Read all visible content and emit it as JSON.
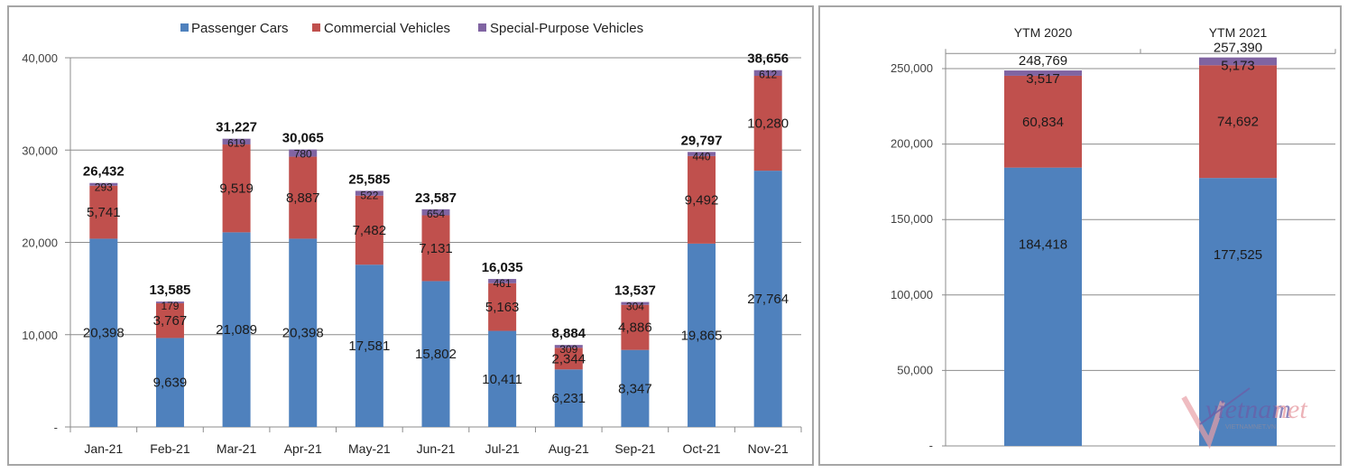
{
  "colors": {
    "passenger": "#4f81bd",
    "commercial": "#c0504d",
    "special": "#8064a2",
    "grid": "#8c8c8c",
    "watermark_red": "#e8a0a6",
    "watermark_purple": "#6a5fa8"
  },
  "watermark": {
    "brand": "vietnamnet",
    "url": "VIETNAMNET.VN"
  },
  "chart_data": [
    {
      "type": "bar",
      "stacked": true,
      "title": "",
      "xlabel": "",
      "ylabel": "",
      "legend": {
        "placement": "top",
        "entries": [
          "Passenger Cars",
          "Commercial Vehicles",
          "Special-Purpose Vehicles"
        ]
      },
      "grid": true,
      "ylim": [
        0,
        40000
      ],
      "yticks": [
        0,
        10000,
        20000,
        30000,
        40000
      ],
      "ytick_labels": [
        "-",
        "10,000",
        "20,000",
        "30,000",
        "40,000"
      ],
      "categories": [
        "Jan-21",
        "Feb-21",
        "Mar-21",
        "Apr-21",
        "May-21",
        "Jun-21",
        "Jul-21",
        "Aug-21",
        "Sep-21",
        "Oct-21",
        "Nov-21"
      ],
      "series": [
        {
          "name": "Passenger Cars",
          "values": [
            20398,
            9639,
            21089,
            20398,
            17581,
            15802,
            10411,
            6231,
            8347,
            19865,
            27764
          ],
          "labels": [
            "20,398",
            "9,639",
            "21,089",
            "20,398",
            "17,581",
            "15,802",
            "10,411",
            "6,231",
            "8,347",
            "19,865",
            "27,764"
          ]
        },
        {
          "name": "Commercial Vehicles",
          "values": [
            5741,
            3767,
            9519,
            8887,
            7482,
            7131,
            5163,
            2344,
            4886,
            9492,
            10280
          ],
          "labels": [
            "5,741",
            "3,767",
            "9,519",
            "8,887",
            "7,482",
            "7,131",
            "5,163",
            "2,344",
            "4,886",
            "9,492",
            "10,280"
          ]
        },
        {
          "name": "Special-Purpose Vehicles",
          "values": [
            293,
            179,
            619,
            780,
            522,
            654,
            461,
            309,
            304,
            440,
            612
          ],
          "labels": [
            "293",
            "179",
            "619",
            "780",
            "522",
            "654",
            "461",
            "309",
            "304",
            "440",
            "612"
          ]
        }
      ],
      "totals": [
        26432,
        13585,
        31227,
        30065,
        25585,
        23587,
        16035,
        8884,
        13537,
        29797,
        38656
      ],
      "total_labels": [
        "26,432",
        "13,585",
        "31,227",
        "30,065",
        "25,585",
        "23,587",
        "16,035",
        "8,884",
        "13,537",
        "29,797",
        "38,656"
      ]
    },
    {
      "type": "bar",
      "stacked": true,
      "title": "",
      "xlabel": "",
      "ylabel": "",
      "grid": true,
      "category_axis_position": "top",
      "ylim": [
        0,
        260000
      ],
      "yticks": [
        0,
        50000,
        100000,
        150000,
        200000,
        250000
      ],
      "ytick_labels": [
        "-",
        "50,000",
        "100,000",
        "150,000",
        "200,000",
        "250,000"
      ],
      "categories": [
        "YTM 2020",
        "YTM 2021"
      ],
      "series": [
        {
          "name": "Passenger Cars",
          "values": [
            184418,
            177525
          ],
          "labels": [
            "184,418",
            "177,525"
          ]
        },
        {
          "name": "Commercial Vehicles",
          "values": [
            60834,
            74692
          ],
          "labels": [
            "60,834",
            "74,692"
          ]
        },
        {
          "name": "Special-Purpose Vehicles",
          "values": [
            3517,
            5173
          ],
          "labels": [
            "3,517",
            "5,173"
          ]
        }
      ],
      "totals": [
        248769,
        257390
      ],
      "total_labels": [
        "248,769",
        "257,390"
      ]
    }
  ]
}
